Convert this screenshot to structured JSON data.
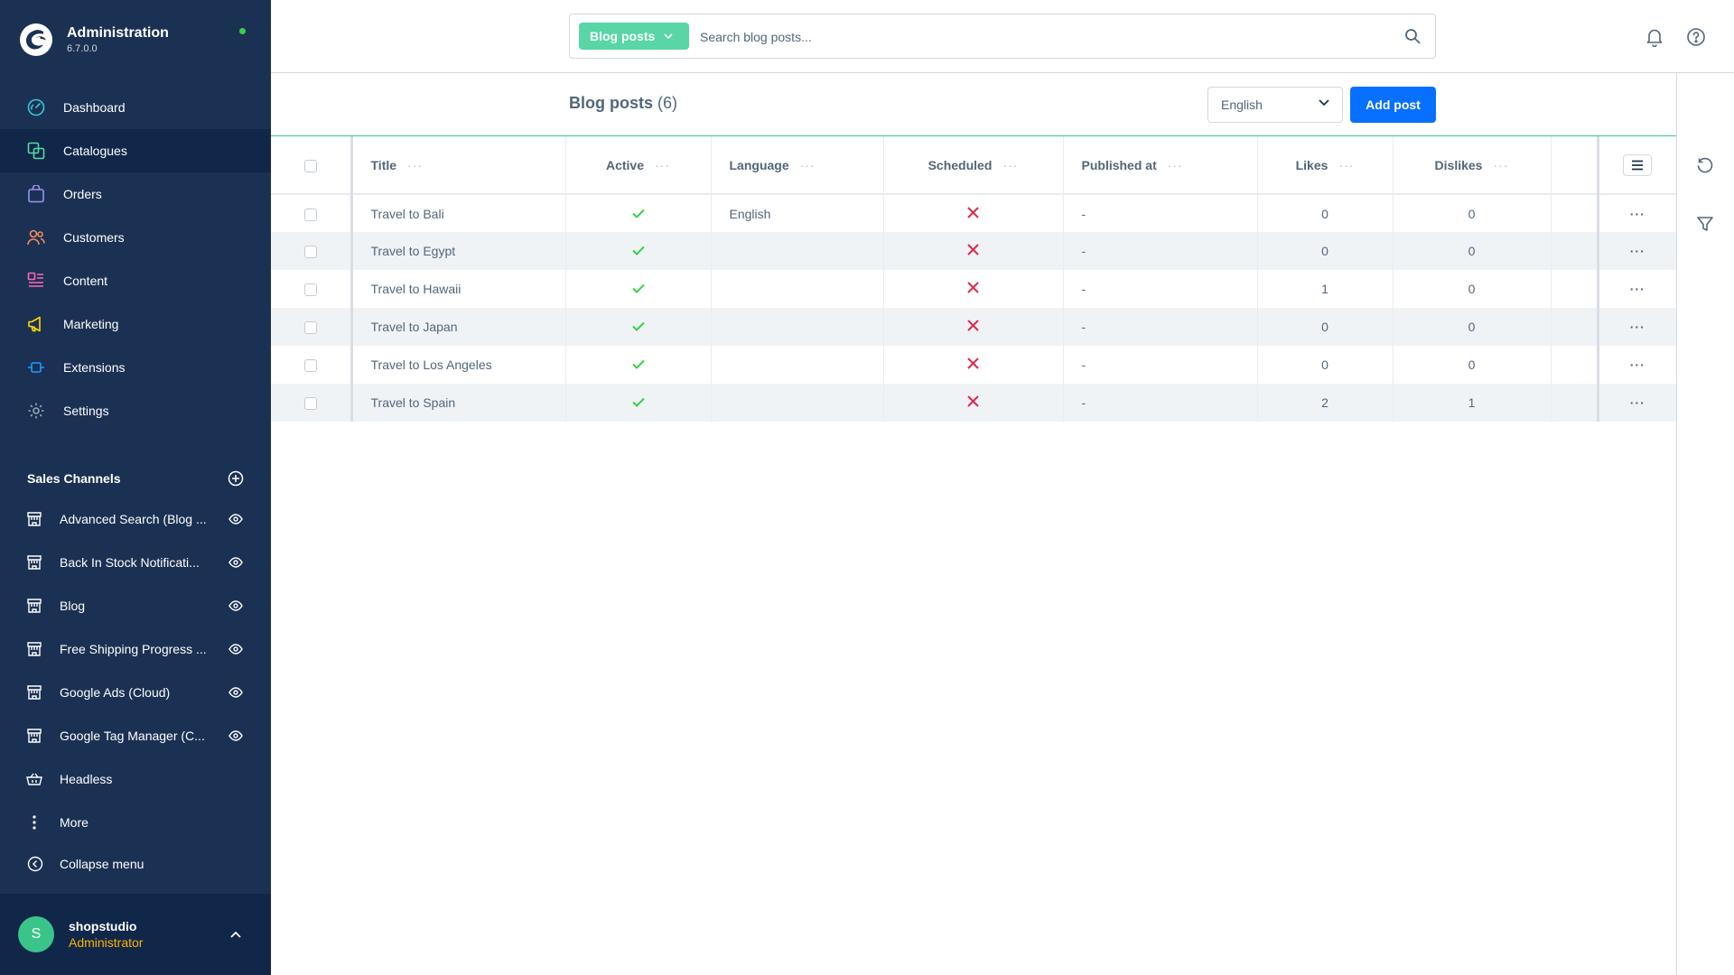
{
  "app": {
    "title": "Administration",
    "version": "6.7.0.0"
  },
  "nav": {
    "items": [
      {
        "label": "Dashboard",
        "icon": "dashboard-icon",
        "color": "#38c7d8"
      },
      {
        "label": "Catalogues",
        "icon": "catalogues-icon",
        "color": "#57d9a3"
      },
      {
        "label": "Orders",
        "icon": "orders-icon",
        "color": "#a092f0"
      },
      {
        "label": "Customers",
        "icon": "customers-icon",
        "color": "#f88962"
      },
      {
        "label": "Content",
        "icon": "content-icon",
        "color": "#ff68b4"
      },
      {
        "label": "Marketing",
        "icon": "marketing-icon",
        "color": "#ffd700"
      },
      {
        "label": "Extensions",
        "icon": "extensions-icon",
        "color": "#189eff"
      },
      {
        "label": "Settings",
        "icon": "settings-icon",
        "color": "#9aa8b5"
      }
    ],
    "active_index": 1
  },
  "sales_channels": {
    "title": "Sales Channels",
    "items": [
      {
        "label": "Advanced Search (Blog ..."
      },
      {
        "label": "Back In Stock Notificati..."
      },
      {
        "label": "Blog"
      },
      {
        "label": "Free Shipping Progress ..."
      },
      {
        "label": "Google Ads (Cloud)"
      },
      {
        "label": "Google Tag Manager (C..."
      },
      {
        "label": "Headless",
        "icon": "basket-icon",
        "no_eye": true
      },
      {
        "label": "More",
        "icon": "more-vertical-icon",
        "no_eye": true
      }
    ]
  },
  "collapse_menu": {
    "label": "Collapse menu"
  },
  "user": {
    "initial": "S",
    "name": "shopstudio",
    "role": "Administrator"
  },
  "search": {
    "type_label": "Blog posts",
    "placeholder": "Search blog posts..."
  },
  "page": {
    "title": "Blog posts",
    "count": "(6)"
  },
  "language_select": {
    "value": "English"
  },
  "add_button": {
    "label": "Add post"
  },
  "grid": {
    "columns": [
      "Title",
      "Active",
      "Language",
      "Scheduled",
      "Published at",
      "Likes",
      "Dislikes"
    ],
    "rows": [
      {
        "title": "Travel to Bali",
        "active": true,
        "language": "English",
        "scheduled": false,
        "published_at": "-",
        "likes": "0",
        "dislikes": "0"
      },
      {
        "title": "Travel to Egypt",
        "active": true,
        "language": "",
        "scheduled": false,
        "published_at": "-",
        "likes": "0",
        "dislikes": "0"
      },
      {
        "title": "Travel to Hawaii",
        "active": true,
        "language": "",
        "scheduled": false,
        "published_at": "-",
        "likes": "1",
        "dislikes": "0"
      },
      {
        "title": "Travel to Japan",
        "active": true,
        "language": "",
        "scheduled": false,
        "published_at": "-",
        "likes": "0",
        "dislikes": "0"
      },
      {
        "title": "Travel to Los Angeles",
        "active": true,
        "language": "",
        "scheduled": false,
        "published_at": "-",
        "likes": "0",
        "dislikes": "0"
      },
      {
        "title": "Travel to Spain",
        "active": true,
        "language": "",
        "scheduled": false,
        "published_at": "-",
        "likes": "2",
        "dislikes": "1"
      }
    ]
  },
  "colors": {
    "sidebar_bg": "#1b3153",
    "accent_blue": "#0870ff",
    "accent_green": "#3bc48a",
    "check_green": "#37d046",
    "cross_red": "#de294c"
  }
}
